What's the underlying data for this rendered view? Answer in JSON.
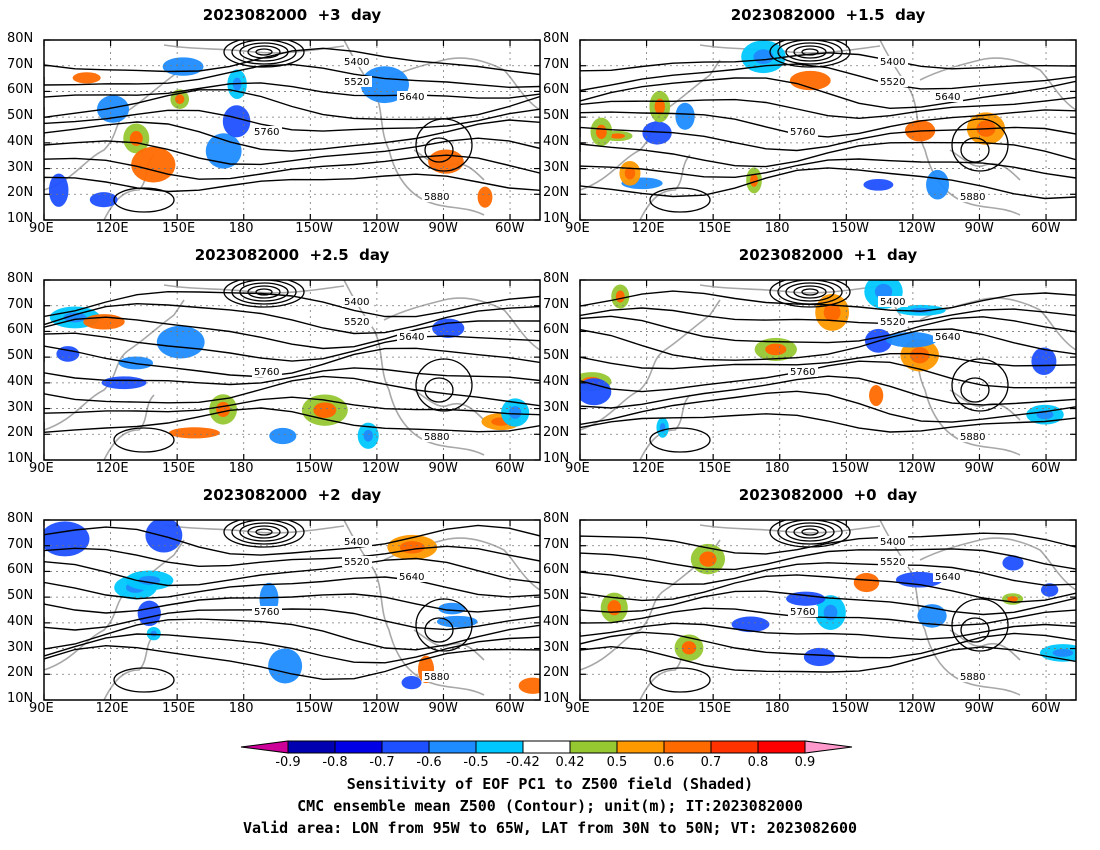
{
  "panels": [
    {
      "title": "2023082000  +3  day"
    },
    {
      "title": "2023082000  +1.5  day"
    },
    {
      "title": "2023082000  +2.5  day"
    },
    {
      "title": "2023082000  +1  day"
    },
    {
      "title": "2023082000  +2  day"
    },
    {
      "title": "2023082000  +0  day"
    }
  ],
  "axes": {
    "lon_ticks": [
      "90E",
      "120E",
      "150E",
      "180",
      "150W",
      "120W",
      "90W",
      "60W"
    ],
    "lat_ticks": [
      "80N",
      "70N",
      "60N",
      "50N",
      "40N",
      "30N",
      "20N",
      "10N"
    ]
  },
  "colorbar": {
    "labels": [
      "-0.9",
      "-0.8",
      "-0.7",
      "-0.6",
      "-0.5",
      "-0.42",
      "0.42",
      "0.5",
      "0.6",
      "0.7",
      "0.8",
      "0.9"
    ],
    "colors": [
      "#cc0099",
      "#0000b0",
      "#0000e6",
      "#1e50ff",
      "#1e8cff",
      "#00c8ff",
      "#ffffff",
      "#96c832",
      "#ff9900",
      "#ff6a00",
      "#ff3200",
      "#ff0000",
      "#ff99cc"
    ]
  },
  "caption": {
    "line1": "Sensitivity of EOF PC1 to Z500 field (Shaded)",
    "line2": "CMC ensemble mean Z500 (Contour); unit(m); IT:2023082000",
    "line3": "Valid area: LON from 95W to 65W, LAT from 30N to 50N; VT: 2023082600"
  },
  "contour_labels": [
    "5400",
    "5520",
    "5640",
    "5760",
    "5880"
  ]
}
